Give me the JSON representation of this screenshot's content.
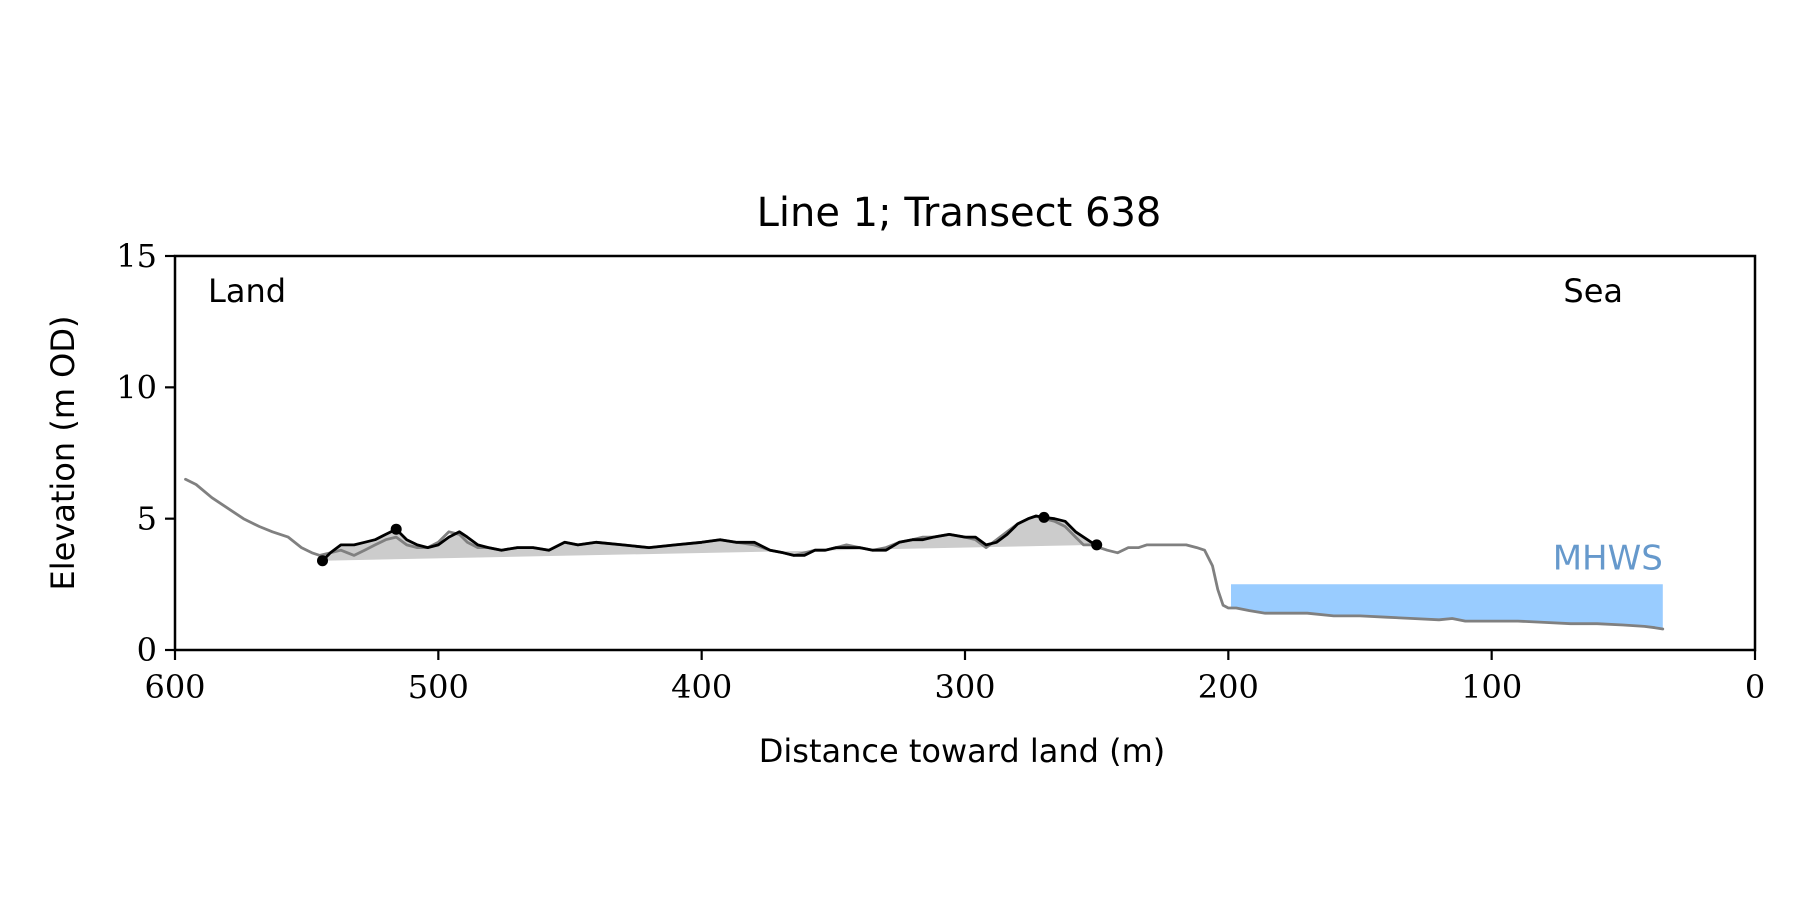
{
  "chart_data": {
    "type": "line",
    "title": "Line 1; Transect 638",
    "xlabel": "Distance toward land (m)",
    "ylabel": "Elevation (m OD)",
    "xlim": [
      600,
      0
    ],
    "ylim": [
      0,
      15
    ],
    "x_ticks": [
      "600",
      "500",
      "400",
      "300",
      "200",
      "100",
      "0"
    ],
    "y_ticks": [
      "0",
      "5",
      "10",
      "15"
    ],
    "grid": false,
    "annotations": {
      "land": "Land",
      "sea": "Sea",
      "mhws": "MHWS"
    },
    "colors": {
      "profile": "#808080",
      "dune_crest": "#000000",
      "dune_fill": "#cccccc",
      "mhws_fill": "#99ccff",
      "mhws_text": "#6699cc"
    },
    "profile": {
      "x": [
        596,
        592,
        586,
        580,
        574,
        568,
        563,
        557,
        552,
        548,
        545,
        541,
        537,
        532,
        528,
        524,
        520,
        516,
        512,
        508,
        504,
        500,
        496,
        492,
        489,
        485,
        481,
        476,
        470,
        464,
        458,
        452,
        447,
        440,
        430,
        420,
        410,
        400,
        393,
        387,
        380,
        374,
        369,
        365,
        361,
        357,
        353,
        349,
        345,
        340,
        335,
        330,
        325,
        320,
        316,
        312,
        306,
        300,
        296,
        292,
        288,
        284,
        280,
        276,
        273,
        270,
        266,
        262,
        258,
        255,
        252,
        249,
        246,
        242,
        238,
        234,
        231,
        228,
        224,
        220,
        216,
        212,
        209,
        206,
        204,
        202,
        200,
        199,
        197,
        192,
        186,
        180,
        170,
        160,
        150,
        140,
        130,
        120,
        115,
        110,
        100,
        90,
        80,
        70,
        60,
        50,
        42,
        38,
        35
      ],
      "y": [
        6.5,
        6.3,
        5.8,
        5.4,
        5.0,
        4.7,
        4.5,
        4.3,
        3.9,
        3.7,
        3.6,
        3.7,
        3.8,
        3.6,
        3.8,
        4.0,
        4.2,
        4.3,
        4.0,
        3.9,
        3.9,
        4.1,
        4.5,
        4.4,
        4.1,
        3.9,
        3.9,
        3.8,
        3.9,
        3.9,
        3.8,
        4.1,
        4.0,
        4.1,
        4.0,
        3.9,
        4.0,
        4.1,
        4.2,
        4.1,
        4.0,
        3.8,
        3.7,
        3.6,
        3.7,
        3.8,
        3.8,
        3.9,
        4.0,
        3.9,
        3.8,
        3.9,
        4.1,
        4.2,
        4.3,
        4.3,
        4.4,
        4.3,
        4.2,
        3.9,
        4.2,
        4.5,
        4.8,
        5.0,
        5.1,
        5.0,
        4.9,
        4.7,
        4.3,
        4.0,
        4.0,
        3.9,
        3.8,
        3.7,
        3.9,
        3.9,
        4.0,
        4.0,
        4.0,
        4.0,
        4.0,
        3.9,
        3.8,
        3.2,
        2.3,
        1.7,
        1.6,
        1.6,
        1.6,
        1.5,
        1.4,
        1.4,
        1.4,
        1.3,
        1.3,
        1.25,
        1.2,
        1.15,
        1.2,
        1.1,
        1.1,
        1.1,
        1.05,
        1.0,
        1.0,
        0.95,
        0.9,
        0.85,
        0.8
      ]
    },
    "dune": {
      "x": [
        544,
        541,
        537,
        532,
        528,
        524,
        520,
        516,
        512,
        508,
        504,
        500,
        496,
        492,
        489,
        485,
        481,
        476,
        470,
        464,
        458,
        452,
        447,
        440,
        430,
        420,
        410,
        400,
        393,
        387,
        380,
        374,
        369,
        365,
        361,
        357,
        353,
        349,
        345,
        340,
        335,
        330,
        325,
        320,
        316,
        312,
        306,
        300,
        296,
        292,
        288,
        284,
        280,
        276,
        273,
        270,
        266,
        262,
        258,
        255,
        252,
        250
      ],
      "y": [
        3.4,
        3.7,
        4.0,
        4.0,
        4.1,
        4.2,
        4.4,
        4.6,
        4.2,
        4.0,
        3.9,
        4.0,
        4.3,
        4.5,
        4.3,
        4.0,
        3.9,
        3.8,
        3.9,
        3.9,
        3.8,
        4.1,
        4.0,
        4.1,
        4.0,
        3.9,
        4.0,
        4.1,
        4.2,
        4.1,
        4.1,
        3.8,
        3.7,
        3.6,
        3.6,
        3.8,
        3.8,
        3.9,
        3.9,
        3.9,
        3.8,
        3.8,
        4.1,
        4.2,
        4.2,
        4.3,
        4.4,
        4.3,
        4.3,
        4.0,
        4.1,
        4.4,
        4.8,
        5.0,
        5.1,
        5.05,
        5.0,
        4.9,
        4.5,
        4.3,
        4.1,
        4.0
      ],
      "base_start": [
        544,
        3.4
      ],
      "base_end": [
        250,
        4.0
      ],
      "markers": [
        [
          544,
          3.4
        ],
        [
          516,
          4.6
        ],
        [
          270,
          5.05
        ],
        [
          250,
          4.0
        ]
      ]
    },
    "mhws": {
      "x_start": 199,
      "x_end": 35,
      "level": 2.5
    }
  }
}
